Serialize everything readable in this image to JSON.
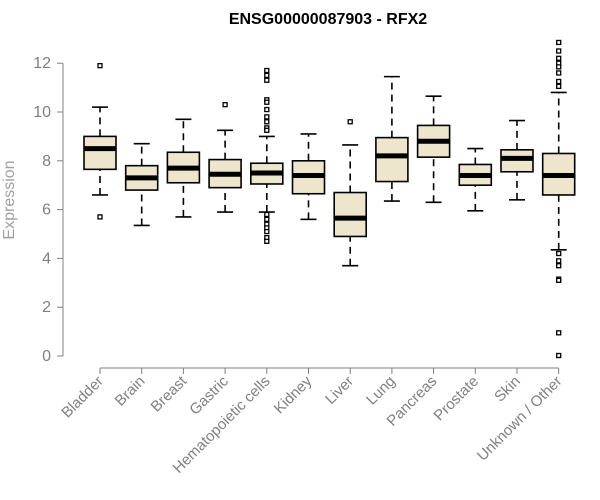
{
  "chart_data": {
    "type": "boxplot",
    "title": "ENSG00000087903 - RFX2",
    "xlabel": "",
    "ylabel": "Expression",
    "ylim": [
      0,
      12.8
    ],
    "yticks": [
      0,
      2,
      4,
      6,
      8,
      10,
      12
    ],
    "grid": false,
    "box_fill": "#ede6cc",
    "median_color": "#000000",
    "categories": [
      "Bladder",
      "Brain",
      "Breast",
      "Gastric",
      "Hematopoietic cells",
      "Kidney",
      "Liver",
      "Lung",
      "Pancreas",
      "Prostate",
      "Skin",
      "Unknown / Other"
    ],
    "boxes": [
      {
        "category": "Bladder",
        "whisker_low": 6.6,
        "q1": 7.65,
        "median": 8.5,
        "q3": 9.0,
        "whisker_high": 10.2,
        "outliers": [
          11.9,
          5.7
        ]
      },
      {
        "category": "Brain",
        "whisker_low": 5.35,
        "q1": 6.8,
        "median": 7.3,
        "q3": 7.8,
        "whisker_high": 8.7,
        "outliers": []
      },
      {
        "category": "Breast",
        "whisker_low": 5.7,
        "q1": 7.1,
        "median": 7.7,
        "q3": 8.35,
        "whisker_high": 9.7,
        "outliers": []
      },
      {
        "category": "Gastric",
        "whisker_low": 5.9,
        "q1": 6.9,
        "median": 7.45,
        "q3": 8.05,
        "whisker_high": 9.25,
        "outliers": [
          10.3
        ]
      },
      {
        "category": "Hematopoietic cells",
        "whisker_low": 5.9,
        "q1": 7.05,
        "median": 7.5,
        "q3": 7.9,
        "whisker_high": 9.0,
        "outliers": [
          11.7,
          11.5,
          11.3,
          10.5,
          10.4,
          10.1,
          9.8,
          9.6,
          9.35,
          9.25,
          5.8,
          5.6,
          5.4,
          5.25,
          5.1,
          4.85,
          4.7
        ]
      },
      {
        "category": "Kidney",
        "whisker_low": 5.6,
        "q1": 6.65,
        "median": 7.4,
        "q3": 8.0,
        "whisker_high": 9.1,
        "outliers": []
      },
      {
        "category": "Liver",
        "whisker_low": 3.7,
        "q1": 4.9,
        "median": 5.65,
        "q3": 6.7,
        "whisker_high": 8.65,
        "outliers": [
          9.6
        ]
      },
      {
        "category": "Lung",
        "whisker_low": 6.35,
        "q1": 7.15,
        "median": 8.2,
        "q3": 8.95,
        "whisker_high": 11.45,
        "outliers": []
      },
      {
        "category": "Pancreas",
        "whisker_low": 6.3,
        "q1": 8.15,
        "median": 8.8,
        "q3": 9.45,
        "whisker_high": 10.65,
        "outliers": []
      },
      {
        "category": "Prostate",
        "whisker_low": 5.95,
        "q1": 7.0,
        "median": 7.4,
        "q3": 7.85,
        "whisker_high": 8.5,
        "outliers": []
      },
      {
        "category": "Skin",
        "whisker_low": 6.4,
        "q1": 7.55,
        "median": 8.1,
        "q3": 8.45,
        "whisker_high": 9.65,
        "outliers": []
      },
      {
        "category": "Unknown / Other",
        "whisker_low": 4.35,
        "q1": 6.6,
        "median": 7.4,
        "q3": 8.3,
        "whisker_high": 10.8,
        "outliers": [
          12.85,
          12.5,
          12.2,
          12.0,
          11.85,
          11.6,
          11.25,
          11.05,
          4.2,
          3.9,
          3.7,
          3.15,
          3.1,
          0.95,
          0.02
        ]
      }
    ]
  }
}
